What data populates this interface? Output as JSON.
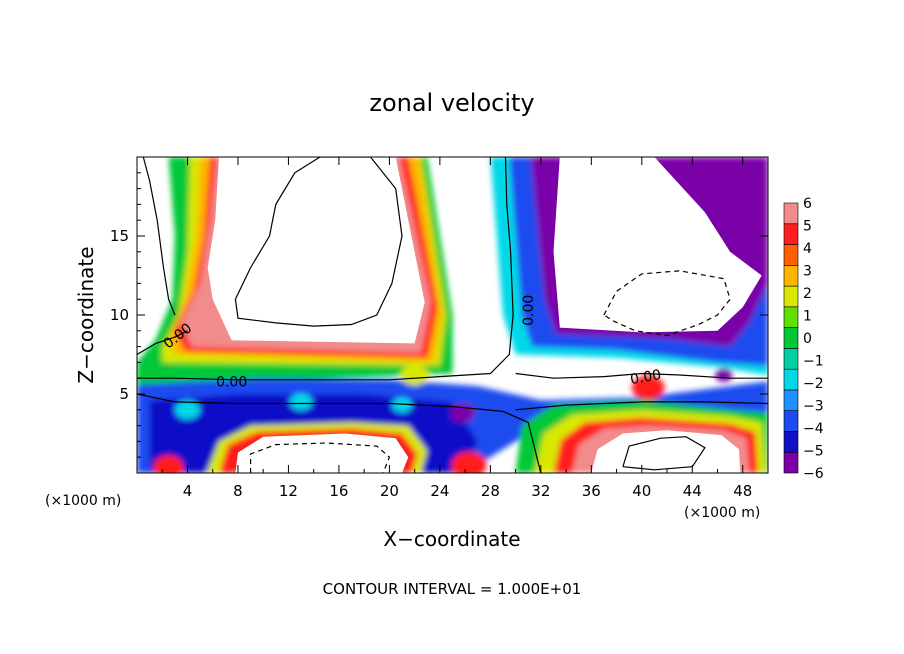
{
  "chart_data": {
    "type": "heatmap",
    "title": "zonal velocity",
    "xlabel": "X−coordinate",
    "ylabel": "Z−coordinate",
    "x_unit_left": "(×1000 m)",
    "x_unit_right": "(×1000 m)",
    "footer": "CONTOUR INTERVAL = 1.000E+01",
    "contour_label": "0.00",
    "xlim": [
      0,
      50
    ],
    "ylim": [
      0,
      20
    ],
    "x_ticks": [
      4,
      8,
      12,
      16,
      20,
      24,
      28,
      32,
      36,
      40,
      44,
      48
    ],
    "x_tick_labels": [
      "4",
      "8",
      "12",
      "16",
      "20",
      "24",
      "28",
      "32",
      "36",
      "40",
      "44",
      "48"
    ],
    "y_ticks": [
      5,
      10,
      15
    ],
    "y_tick_labels": [
      "5",
      "10",
      "15"
    ],
    "colorbar": {
      "levels": [
        -6,
        -5,
        -4,
        -3,
        -2,
        -1,
        0,
        1,
        2,
        3,
        4,
        5,
        6
      ],
      "labels": [
        "−6",
        "−5",
        "−4",
        "−3",
        "−2",
        "−1",
        "0",
        "1",
        "2",
        "3",
        "4",
        "5",
        "6"
      ],
      "colors": [
        "#7a00a8",
        "#1010c8",
        "#1e4bf0",
        "#1e90ff",
        "#00d8e8",
        "#00d0a0",
        "#00c838",
        "#60e000",
        "#d8e800",
        "#ffb400",
        "#ff6000",
        "#ff1e1e",
        "#f28c8c"
      ]
    },
    "saturated_high_color": "#ffffff",
    "saturated_low_color": "#ffffff"
  }
}
